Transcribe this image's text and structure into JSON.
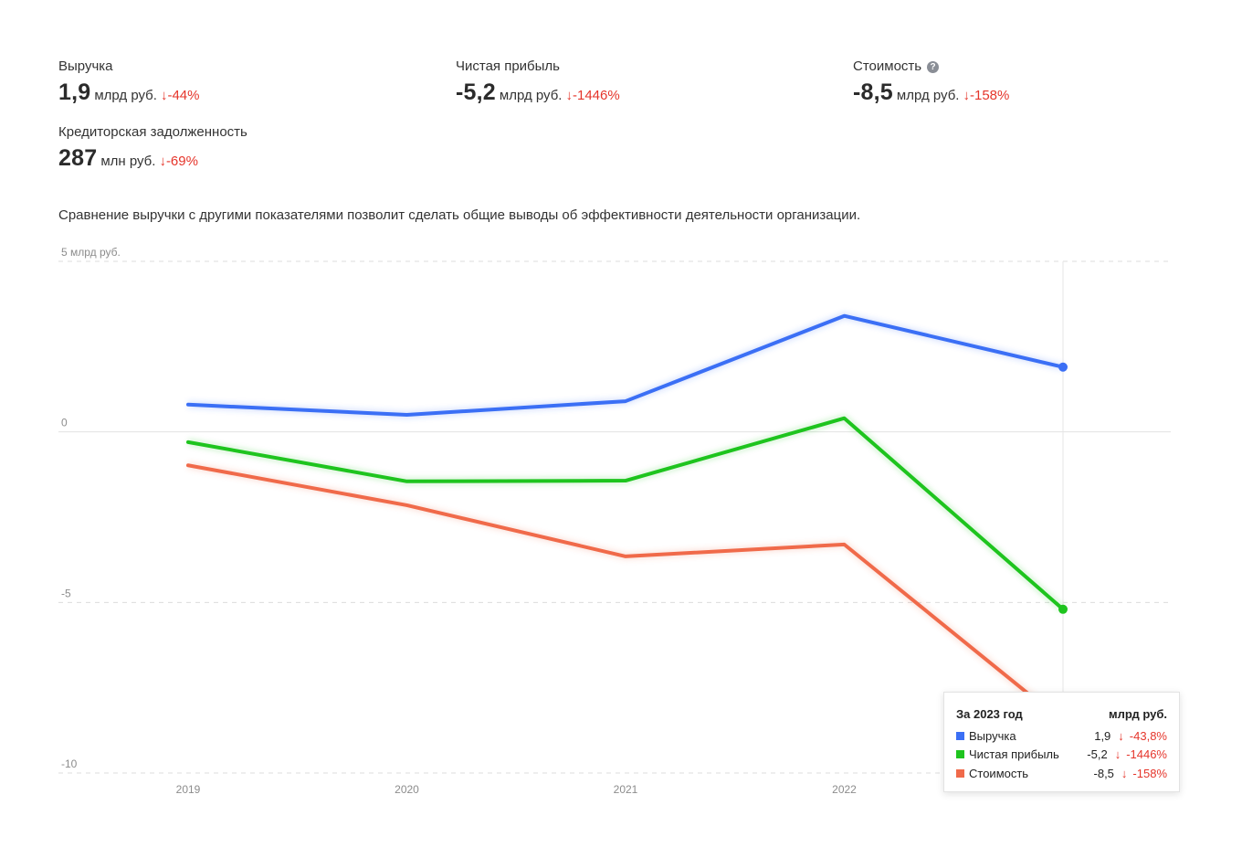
{
  "metrics": [
    {
      "label": "Выручка",
      "value": "1,9",
      "unit": "млрд руб.",
      "arrow": "↓",
      "delta": "-44%"
    },
    {
      "label": "Чистая прибыль",
      "value": "-5,2",
      "unit": "млрд руб.",
      "arrow": "↓",
      "delta": "-1446%"
    },
    {
      "label": "Стоимость",
      "value": "-8,5",
      "unit": "млрд руб.",
      "arrow": "↓",
      "delta": "-158%",
      "info_icon": "question-icon"
    },
    {
      "label": "Кредиторская задолженность",
      "value": "287",
      "unit": "млн руб.",
      "arrow": "↓",
      "delta": "-69%"
    }
  ],
  "description": "Сравнение выручки с другими показателями позволит сделать общие выводы об эффективности деятельности организации.",
  "colors": {
    "revenue": "#3b6ff5",
    "profit": "#1ec41e",
    "cost": "#f06a4a",
    "negative": "#e5352b"
  },
  "chart_data": {
    "type": "line",
    "x": [
      "2019",
      "2020",
      "2021",
      "2022",
      "2023"
    ],
    "xtick_labels": [
      "2019",
      "2020",
      "2021",
      "2022"
    ],
    "ylim": [
      -10,
      5
    ],
    "yticks": [
      {
        "value": 5,
        "label": "5 млрд руб."
      },
      {
        "value": 0,
        "label": "0"
      },
      {
        "value": -5,
        "label": "-5"
      },
      {
        "value": -10,
        "label": "-10"
      }
    ],
    "series": [
      {
        "name": "Выручка",
        "color": "#3b6ff5",
        "values": [
          0.8,
          0.5,
          0.9,
          3.4,
          1.9
        ]
      },
      {
        "name": "Чистая прибыль",
        "color": "#1ec41e",
        "values": [
          -0.3,
          -1.45,
          -1.43,
          0.4,
          -5.2
        ]
      },
      {
        "name": "Стоимость",
        "color": "#f06a4a",
        "values": [
          -0.98,
          -2.15,
          -3.65,
          -3.3,
          -8.5
        ]
      }
    ],
    "highlight_index": 4,
    "grid": true
  },
  "tooltip": {
    "title": "За 2023 год",
    "unit": "млрд руб.",
    "rows": [
      {
        "name": "Выручка",
        "value": "1,9",
        "arrow": "↓",
        "pct": "-43,8%",
        "color": "#3b6ff5"
      },
      {
        "name": "Чистая прибыль",
        "value": "-5,2",
        "arrow": "↓",
        "pct": "-1446%",
        "color": "#1ec41e"
      },
      {
        "name": "Стоимость",
        "value": "-8,5",
        "arrow": "↓",
        "pct": "-158%",
        "color": "#f06a4a"
      }
    ]
  }
}
